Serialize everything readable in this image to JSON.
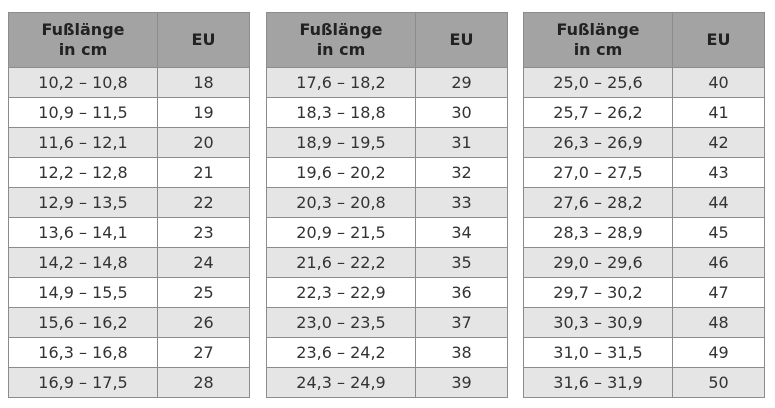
{
  "tables": [
    {
      "header": [
        [
          "Fußlänge",
          "in cm"
        ],
        "EU"
      ],
      "rows": [
        [
          "10,2 – 10,8",
          18
        ],
        [
          "10,9 – 11,5",
          19
        ],
        [
          "11,6 – 12,1",
          20
        ],
        [
          "12,2 – 12,8",
          21
        ],
        [
          "12,9 – 13,5",
          22
        ],
        [
          "13,6 – 14,1",
          23
        ],
        [
          "14,2 – 14,8",
          24
        ],
        [
          "14,9 – 15,5",
          25
        ],
        [
          "15,6 – 16,2",
          26
        ],
        [
          "16,3 – 16,8",
          27
        ],
        [
          "16,9 – 17,5",
          28
        ]
      ]
    },
    {
      "header": [
        [
          "Fußlänge",
          "in cm"
        ],
        "EU"
      ],
      "rows": [
        [
          "17,6 – 18,2",
          29
        ],
        [
          "18,3 – 18,8",
          30
        ],
        [
          "18,9 – 19,5",
          31
        ],
        [
          "19,6 – 20,2",
          32
        ],
        [
          "20,3 – 20,8",
          33
        ],
        [
          "20,9 – 21,5",
          34
        ],
        [
          "21,6 – 22,2",
          35
        ],
        [
          "22,3 – 22,9",
          36
        ],
        [
          "23,0 – 23,5",
          37
        ],
        [
          "23,6 – 24,2",
          38
        ],
        [
          "24,3 – 24,9",
          39
        ]
      ]
    },
    {
      "header": [
        [
          "Fußlänge",
          "in cm"
        ],
        "EU"
      ],
      "rows": [
        [
          "25,0 – 25,6",
          40
        ],
        [
          "25,7 – 26,2",
          41
        ],
        [
          "26,3 – 26,9",
          42
        ],
        [
          "27,0 – 27,5",
          43
        ],
        [
          "27,6 – 28,2",
          44
        ],
        [
          "28,3 – 28,9",
          45
        ],
        [
          "29,0 – 29,6",
          46
        ],
        [
          "29,7 – 30,2",
          47
        ],
        [
          "30,3 – 30,9",
          48
        ],
        [
          "31,0 – 31,5",
          49
        ],
        [
          "31,6 – 31,9",
          50
        ]
      ]
    }
  ]
}
